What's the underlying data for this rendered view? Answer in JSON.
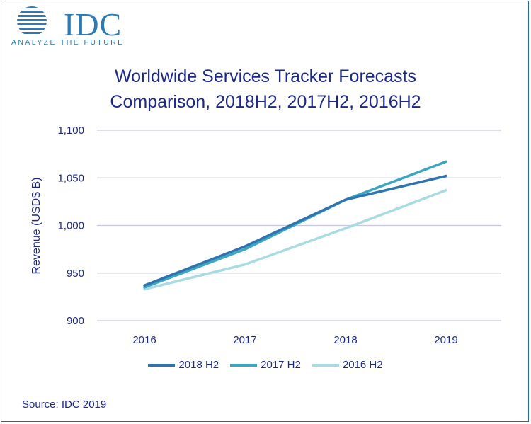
{
  "logo": {
    "name": "IDC",
    "tagline": "ANALYZE THE FUTURE"
  },
  "title": {
    "line1": "Worldwide Services Tracker Forecasts",
    "line2": "Comparison, 2018H2, 2017H2, 2016H2"
  },
  "source": "Source: IDC 2019",
  "colors": {
    "text": "#1b2a8a",
    "grid": "#c9c5e6",
    "logo": "#2d7bb6"
  },
  "chart_data": {
    "type": "line",
    "title": "Worldwide Services Tracker Forecasts Comparison, 2018H2, 2017H2, 2016H2",
    "xlabel": "",
    "ylabel": "Revenue (USD$ B)",
    "categories": [
      "2016",
      "2017",
      "2018",
      "2019"
    ],
    "ylim": [
      900,
      1100
    ],
    "yticks": [
      900,
      950,
      1000,
      1050,
      1100
    ],
    "ytick_labels": [
      "900",
      "950",
      "1,000",
      "1,050",
      "1,100"
    ],
    "grid": true,
    "legend_position": "bottom",
    "series": [
      {
        "name": "2018 H2",
        "color": "#2e74b0",
        "values": [
          937,
          978,
          1027,
          1052
        ]
      },
      {
        "name": "2017 H2",
        "color": "#3aa6bf",
        "values": [
          935,
          975,
          1027,
          1067
        ]
      },
      {
        "name": "2016 H2",
        "color": "#a9dbe3",
        "values": [
          933,
          959,
          997,
          1037
        ]
      }
    ]
  }
}
